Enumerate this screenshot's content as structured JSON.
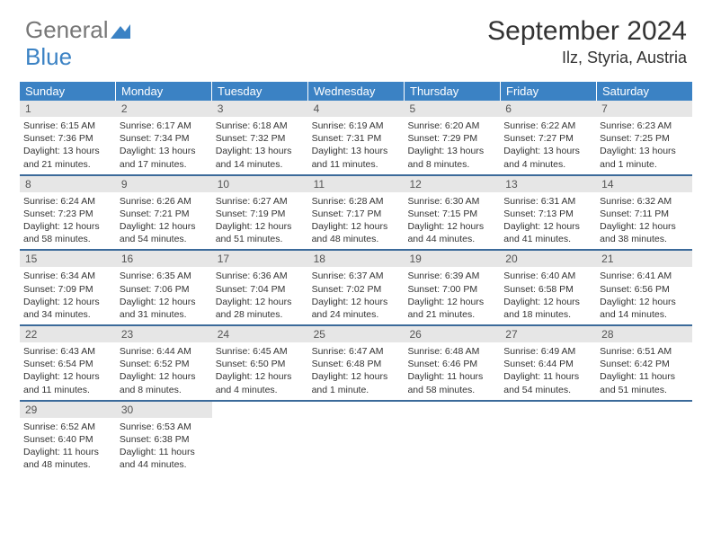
{
  "logo": {
    "general": "General",
    "blue": "Blue"
  },
  "title": "September 2024",
  "location": "Ilz, Styria, Austria",
  "colors": {
    "header_bg": "#3b82c4",
    "row_border": "#3b6a9a",
    "daynum_bg": "#e6e6e6",
    "text": "#333333"
  },
  "day_headers": [
    "Sunday",
    "Monday",
    "Tuesday",
    "Wednesday",
    "Thursday",
    "Friday",
    "Saturday"
  ],
  "weeks": [
    [
      {
        "n": "1",
        "sr": "Sunrise: 6:15 AM",
        "ss": "Sunset: 7:36 PM",
        "dl": "Daylight: 13 hours and 21 minutes."
      },
      {
        "n": "2",
        "sr": "Sunrise: 6:17 AM",
        "ss": "Sunset: 7:34 PM",
        "dl": "Daylight: 13 hours and 17 minutes."
      },
      {
        "n": "3",
        "sr": "Sunrise: 6:18 AM",
        "ss": "Sunset: 7:32 PM",
        "dl": "Daylight: 13 hours and 14 minutes."
      },
      {
        "n": "4",
        "sr": "Sunrise: 6:19 AM",
        "ss": "Sunset: 7:31 PM",
        "dl": "Daylight: 13 hours and 11 minutes."
      },
      {
        "n": "5",
        "sr": "Sunrise: 6:20 AM",
        "ss": "Sunset: 7:29 PM",
        "dl": "Daylight: 13 hours and 8 minutes."
      },
      {
        "n": "6",
        "sr": "Sunrise: 6:22 AM",
        "ss": "Sunset: 7:27 PM",
        "dl": "Daylight: 13 hours and 4 minutes."
      },
      {
        "n": "7",
        "sr": "Sunrise: 6:23 AM",
        "ss": "Sunset: 7:25 PM",
        "dl": "Daylight: 13 hours and 1 minute."
      }
    ],
    [
      {
        "n": "8",
        "sr": "Sunrise: 6:24 AM",
        "ss": "Sunset: 7:23 PM",
        "dl": "Daylight: 12 hours and 58 minutes."
      },
      {
        "n": "9",
        "sr": "Sunrise: 6:26 AM",
        "ss": "Sunset: 7:21 PM",
        "dl": "Daylight: 12 hours and 54 minutes."
      },
      {
        "n": "10",
        "sr": "Sunrise: 6:27 AM",
        "ss": "Sunset: 7:19 PM",
        "dl": "Daylight: 12 hours and 51 minutes."
      },
      {
        "n": "11",
        "sr": "Sunrise: 6:28 AM",
        "ss": "Sunset: 7:17 PM",
        "dl": "Daylight: 12 hours and 48 minutes."
      },
      {
        "n": "12",
        "sr": "Sunrise: 6:30 AM",
        "ss": "Sunset: 7:15 PM",
        "dl": "Daylight: 12 hours and 44 minutes."
      },
      {
        "n": "13",
        "sr": "Sunrise: 6:31 AM",
        "ss": "Sunset: 7:13 PM",
        "dl": "Daylight: 12 hours and 41 minutes."
      },
      {
        "n": "14",
        "sr": "Sunrise: 6:32 AM",
        "ss": "Sunset: 7:11 PM",
        "dl": "Daylight: 12 hours and 38 minutes."
      }
    ],
    [
      {
        "n": "15",
        "sr": "Sunrise: 6:34 AM",
        "ss": "Sunset: 7:09 PM",
        "dl": "Daylight: 12 hours and 34 minutes."
      },
      {
        "n": "16",
        "sr": "Sunrise: 6:35 AM",
        "ss": "Sunset: 7:06 PM",
        "dl": "Daylight: 12 hours and 31 minutes."
      },
      {
        "n": "17",
        "sr": "Sunrise: 6:36 AM",
        "ss": "Sunset: 7:04 PM",
        "dl": "Daylight: 12 hours and 28 minutes."
      },
      {
        "n": "18",
        "sr": "Sunrise: 6:37 AM",
        "ss": "Sunset: 7:02 PM",
        "dl": "Daylight: 12 hours and 24 minutes."
      },
      {
        "n": "19",
        "sr": "Sunrise: 6:39 AM",
        "ss": "Sunset: 7:00 PM",
        "dl": "Daylight: 12 hours and 21 minutes."
      },
      {
        "n": "20",
        "sr": "Sunrise: 6:40 AM",
        "ss": "Sunset: 6:58 PM",
        "dl": "Daylight: 12 hours and 18 minutes."
      },
      {
        "n": "21",
        "sr": "Sunrise: 6:41 AM",
        "ss": "Sunset: 6:56 PM",
        "dl": "Daylight: 12 hours and 14 minutes."
      }
    ],
    [
      {
        "n": "22",
        "sr": "Sunrise: 6:43 AM",
        "ss": "Sunset: 6:54 PM",
        "dl": "Daylight: 12 hours and 11 minutes."
      },
      {
        "n": "23",
        "sr": "Sunrise: 6:44 AM",
        "ss": "Sunset: 6:52 PM",
        "dl": "Daylight: 12 hours and 8 minutes."
      },
      {
        "n": "24",
        "sr": "Sunrise: 6:45 AM",
        "ss": "Sunset: 6:50 PM",
        "dl": "Daylight: 12 hours and 4 minutes."
      },
      {
        "n": "25",
        "sr": "Sunrise: 6:47 AM",
        "ss": "Sunset: 6:48 PM",
        "dl": "Daylight: 12 hours and 1 minute."
      },
      {
        "n": "26",
        "sr": "Sunrise: 6:48 AM",
        "ss": "Sunset: 6:46 PM",
        "dl": "Daylight: 11 hours and 58 minutes."
      },
      {
        "n": "27",
        "sr": "Sunrise: 6:49 AM",
        "ss": "Sunset: 6:44 PM",
        "dl": "Daylight: 11 hours and 54 minutes."
      },
      {
        "n": "28",
        "sr": "Sunrise: 6:51 AM",
        "ss": "Sunset: 6:42 PM",
        "dl": "Daylight: 11 hours and 51 minutes."
      }
    ],
    [
      {
        "n": "29",
        "sr": "Sunrise: 6:52 AM",
        "ss": "Sunset: 6:40 PM",
        "dl": "Daylight: 11 hours and 48 minutes."
      },
      {
        "n": "30",
        "sr": "Sunrise: 6:53 AM",
        "ss": "Sunset: 6:38 PM",
        "dl": "Daylight: 11 hours and 44 minutes."
      },
      null,
      null,
      null,
      null,
      null
    ]
  ]
}
